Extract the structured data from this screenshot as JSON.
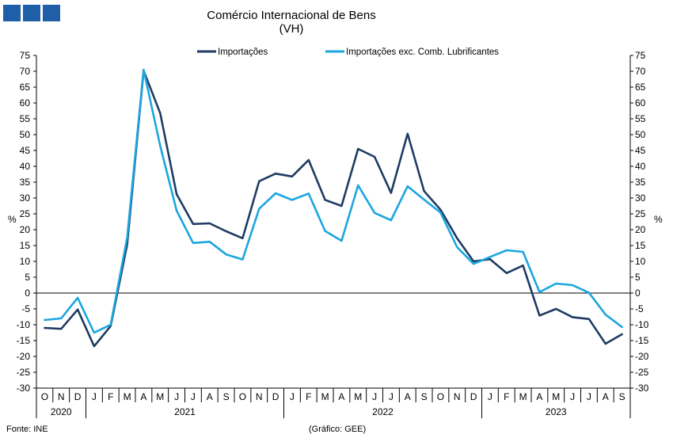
{
  "chart_data": {
    "type": "line",
    "title": "Comércio Internacional de Bens",
    "subtitle": "(VH)",
    "ylabel_left": "%",
    "ylabel_right": "%",
    "ylim": [
      -30,
      75
    ],
    "y_ticks": [
      -30,
      -25,
      -20,
      -15,
      -10,
      -5,
      0,
      5,
      10,
      15,
      20,
      25,
      30,
      35,
      40,
      45,
      50,
      55,
      60,
      65,
      70,
      75
    ],
    "x": [
      "O",
      "N",
      "D",
      "J",
      "F",
      "M",
      "A",
      "M",
      "J",
      "J",
      "A",
      "S",
      "O",
      "N",
      "D",
      "J",
      "F",
      "M",
      "A",
      "M",
      "J",
      "J",
      "A",
      "S",
      "O",
      "N",
      "D",
      "J",
      "F",
      "M",
      "A",
      "M",
      "J",
      "J",
      "A",
      "S"
    ],
    "years": [
      {
        "label": "2020",
        "start": 0,
        "end": 2
      },
      {
        "label": "2021",
        "start": 3,
        "end": 14
      },
      {
        "label": "2022",
        "start": 15,
        "end": 26
      },
      {
        "label": "2023",
        "start": 27,
        "end": 35
      }
    ],
    "legend_position": "top-center",
    "grid": false,
    "series": [
      {
        "name": "Importações",
        "color": "#1f3b63",
        "values": [
          -11,
          -11.3,
          -5.2,
          -16.8,
          -10.4,
          15.3,
          70.2,
          56.8,
          31.2,
          21.8,
          22,
          19.5,
          17.3,
          35.3,
          37.7,
          36.8,
          42,
          29.4,
          27.5,
          45.5,
          43,
          31.6,
          50.3,
          32.2,
          26.3,
          17.3,
          10,
          10.7,
          6.3,
          8.7,
          -7.1,
          -5,
          -7.6,
          -8.2,
          -16,
          -13
        ]
      },
      {
        "name": "Importações exc. Comb. Lubrificantes",
        "color": "#1aa6df",
        "values": [
          -8.5,
          -8,
          -1.5,
          -12.5,
          -10,
          17.5,
          70.5,
          46.5,
          26,
          15.8,
          16.2,
          12.2,
          10.6,
          26.6,
          31.5,
          29.4,
          31.4,
          19.6,
          16.5,
          34,
          25.3,
          23,
          33.7,
          29.5,
          25.4,
          14.5,
          9.2,
          11.4,
          13.5,
          13,
          0.3,
          3,
          2.5,
          0.1,
          -6.8,
          -10.7
        ]
      }
    ]
  },
  "header": {
    "title": "Comércio Internacional de Bens",
    "subtitle": "(VH)"
  },
  "legend": {
    "items": [
      "Importações",
      "Importações exc. Comb. Lubrificantes"
    ]
  },
  "footer": {
    "source": "Fonte: INE",
    "credit": "(Gráfico: GEE)"
  },
  "logo_color": "#1f5fa8"
}
